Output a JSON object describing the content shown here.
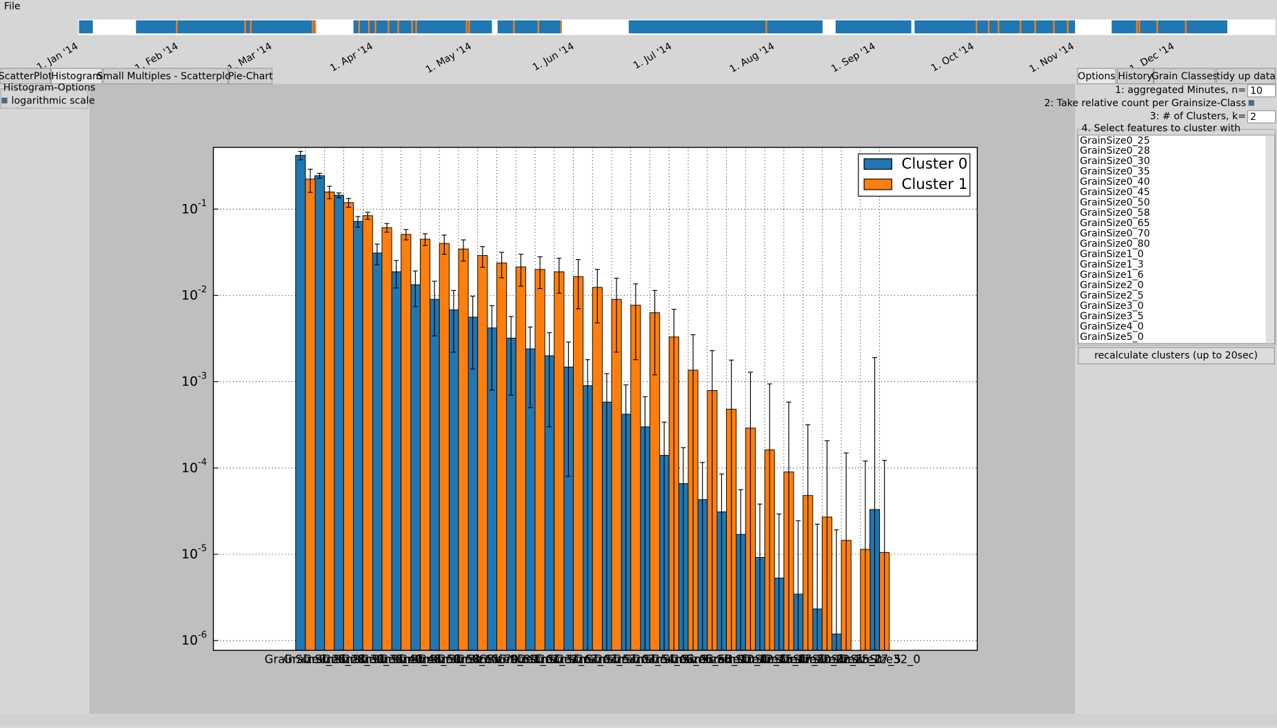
{
  "menu": [
    "File"
  ],
  "timeline": {
    "labels": [
      "1. Jan '14",
      "1. Feb '14",
      "1. Mar '14",
      "1. Apr '14",
      "1. May '14",
      "1. Jun '14",
      "1. Jul '14",
      "1. Aug '14",
      "1. Sep '14",
      "1. Oct '14",
      "1. Nov '14",
      "1. Dec '14"
    ]
  },
  "left_tabs": [
    "ScatterPlot",
    "Histogram",
    "Small Multiples - Scatterplot",
    "Pie-Chart"
  ],
  "histogram_options": {
    "title": "Histogram-Options",
    "checkbox": "logarithmic scale"
  },
  "right_tabs": [
    "Options",
    "History",
    "Grain Classes",
    "tidy up data"
  ],
  "options": {
    "n_label": "1: aggregated Minutes, n=",
    "n": 10,
    "relative_label": "2: Take relative count per Grainsize-Class",
    "k_label": "3: # of Clusters, k=",
    "k": 2,
    "features_title": "4. Select features to cluster with",
    "features": [
      "GrainSize0_25",
      "GrainSize0_28",
      "GrainSize0_30",
      "GrainSize0_35",
      "GrainSize0_40",
      "GrainSize0_45",
      "GrainSize0_50",
      "GrainSize0_58",
      "GrainSize0_65",
      "GrainSize0_70",
      "GrainSize0_80",
      "GrainSize1_0",
      "GrainSize1_3",
      "GrainSize1_6",
      "GrainSize2_0",
      "GrainSize2_5",
      "GrainSize3_0",
      "GrainSize3_5",
      "GrainSize4_0",
      "GrainSize5_0"
    ],
    "button": "recalculate clusters (up to 20sec)"
  },
  "chart_data": {
    "type": "bar",
    "log_scale": true,
    "grid": true,
    "legend": "upper right",
    "categories": [
      "GrainSize0_25",
      "GrainSize0_28",
      "GrainSize0_30",
      "GrainSize0_35",
      "GrainSize0_40",
      "GrainSize0_45",
      "GrainSize0_50",
      "GrainSize0_58",
      "GrainSize0_65",
      "GrainSize0_70",
      "GrainSize0_80",
      "GrainSize1_0",
      "GrainSize1_3",
      "GrainSize1_6",
      "GrainSize2_0",
      "GrainSize2_5",
      "GrainSize3_0",
      "GrainSize3_5",
      "GrainSize4_0",
      "GrainSize5_0",
      "GrainSize6_5",
      "GrainSize8_0",
      "GrainSize10_0",
      "GrainSize12_5",
      "GrainSize15_0",
      "GrainSize17_5",
      "GrainSize20_0",
      "GrainSize22_5",
      "GrainSize25_0",
      "GrainSize27_5",
      "GrainSize32_0"
    ],
    "series": [
      {
        "name": "Cluster 0",
        "color": "#1f77b4",
        "values": [
          0.42,
          0.244,
          0.145,
          0.072,
          0.031,
          0.0188,
          0.0133,
          0.009,
          0.0068,
          0.0056,
          0.0042,
          0.0032,
          0.0024,
          0.002,
          0.00148,
          0.0009,
          0.00058,
          0.00042,
          0.0003,
          0.00014,
          6.6e-05,
          4.3e-05,
          3.1e-05,
          1.7e-05,
          9.2e-06,
          5.3e-06,
          3.45e-06,
          2.33e-06,
          1.19e-06,
          null,
          3.3e-05
        ],
        "errors": [
          0.047,
          0.016,
          0.009,
          0.01,
          0.0083,
          0.0066,
          0.0059,
          0.0056,
          0.0046,
          0.0042,
          0.0034,
          0.0025,
          0.0019,
          0.0017,
          0.0014,
          0.0009,
          0.00066,
          0.0005,
          0.00037,
          0.0002,
          0.000106,
          7.3e-05,
          5.4e-05,
          3.9e-05,
          2.9e-05,
          2.4e-05,
          2.1e-05,
          2e-05,
          1.8e-05,
          null,
          0.00187
        ]
      },
      {
        "name": "Cluster 1",
        "color": "#ff7f0e",
        "values": [
          0.223,
          0.158,
          0.119,
          0.084,
          0.061,
          0.051,
          0.0448,
          0.04,
          0.0345,
          0.029,
          0.0238,
          0.0214,
          0.02,
          0.0188,
          0.0165,
          0.0124,
          0.009,
          0.0077,
          0.0063,
          0.0033,
          0.00136,
          0.00079,
          0.00048,
          0.00029,
          0.000162,
          9e-05,
          4.8e-05,
          2.7e-05,
          1.45e-05,
          1.14e-05,
          1.05e-05
        ],
        "errors": [
          0.067,
          0.026,
          0.014,
          0.008,
          0.007,
          0.007,
          0.007,
          0.01,
          0.0095,
          0.0078,
          0.0078,
          0.0086,
          0.008,
          0.0082,
          0.0095,
          0.0076,
          0.0068,
          0.0059,
          0.0051,
          0.0036,
          0.00214,
          0.0015,
          0.0013,
          0.001,
          0.00078,
          0.00049,
          0.00027,
          0.00018,
          0.000135,
          0.000109,
          0.000112
        ]
      }
    ],
    "ylim": [
      7.7e-07,
      0.52
    ],
    "yticks": [
      {
        "value": 0.1,
        "label": "10",
        "exponent": "-1"
      },
      {
        "value": 0.01,
        "label": "10",
        "exponent": "-2"
      },
      {
        "value": 0.001,
        "label": "10",
        "exponent": "-3"
      },
      {
        "value": 0.0001,
        "label": "10",
        "exponent": "-4"
      },
      {
        "value": 1e-05,
        "label": "10",
        "exponent": "-5"
      },
      {
        "value": 1e-06,
        "label": "10",
        "exponent": "-6"
      }
    ]
  }
}
